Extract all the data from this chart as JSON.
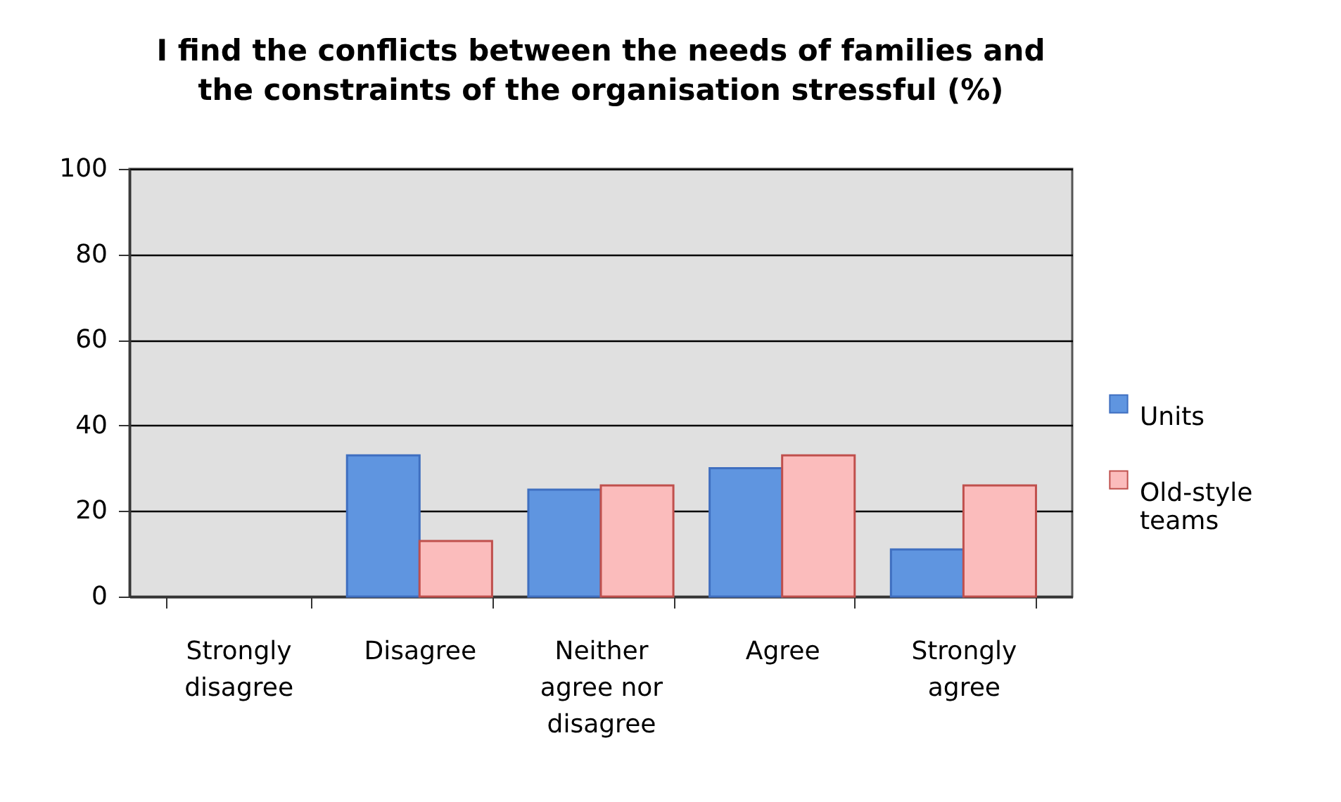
{
  "chart_data": {
    "type": "bar",
    "title": "I find the conflicts between the needs of families and the constraints of the organisation stressful (%)",
    "categories": [
      "Strongly disagree",
      "Disagree",
      "Neither agree nor disagree",
      "Agree",
      "Strongly agree"
    ],
    "series": [
      {
        "name": "Units",
        "color": "#5f95e0",
        "values": [
          null,
          33,
          25,
          30,
          11
        ]
      },
      {
        "name": "Old-style teams",
        "color": "#fbbcbc",
        "values": [
          null,
          13,
          26,
          33,
          26
        ]
      }
    ],
    "ylim": [
      0,
      100
    ],
    "yticks": [
      0,
      20,
      40,
      60,
      80,
      100
    ],
    "grid": "y",
    "legend": "right"
  }
}
